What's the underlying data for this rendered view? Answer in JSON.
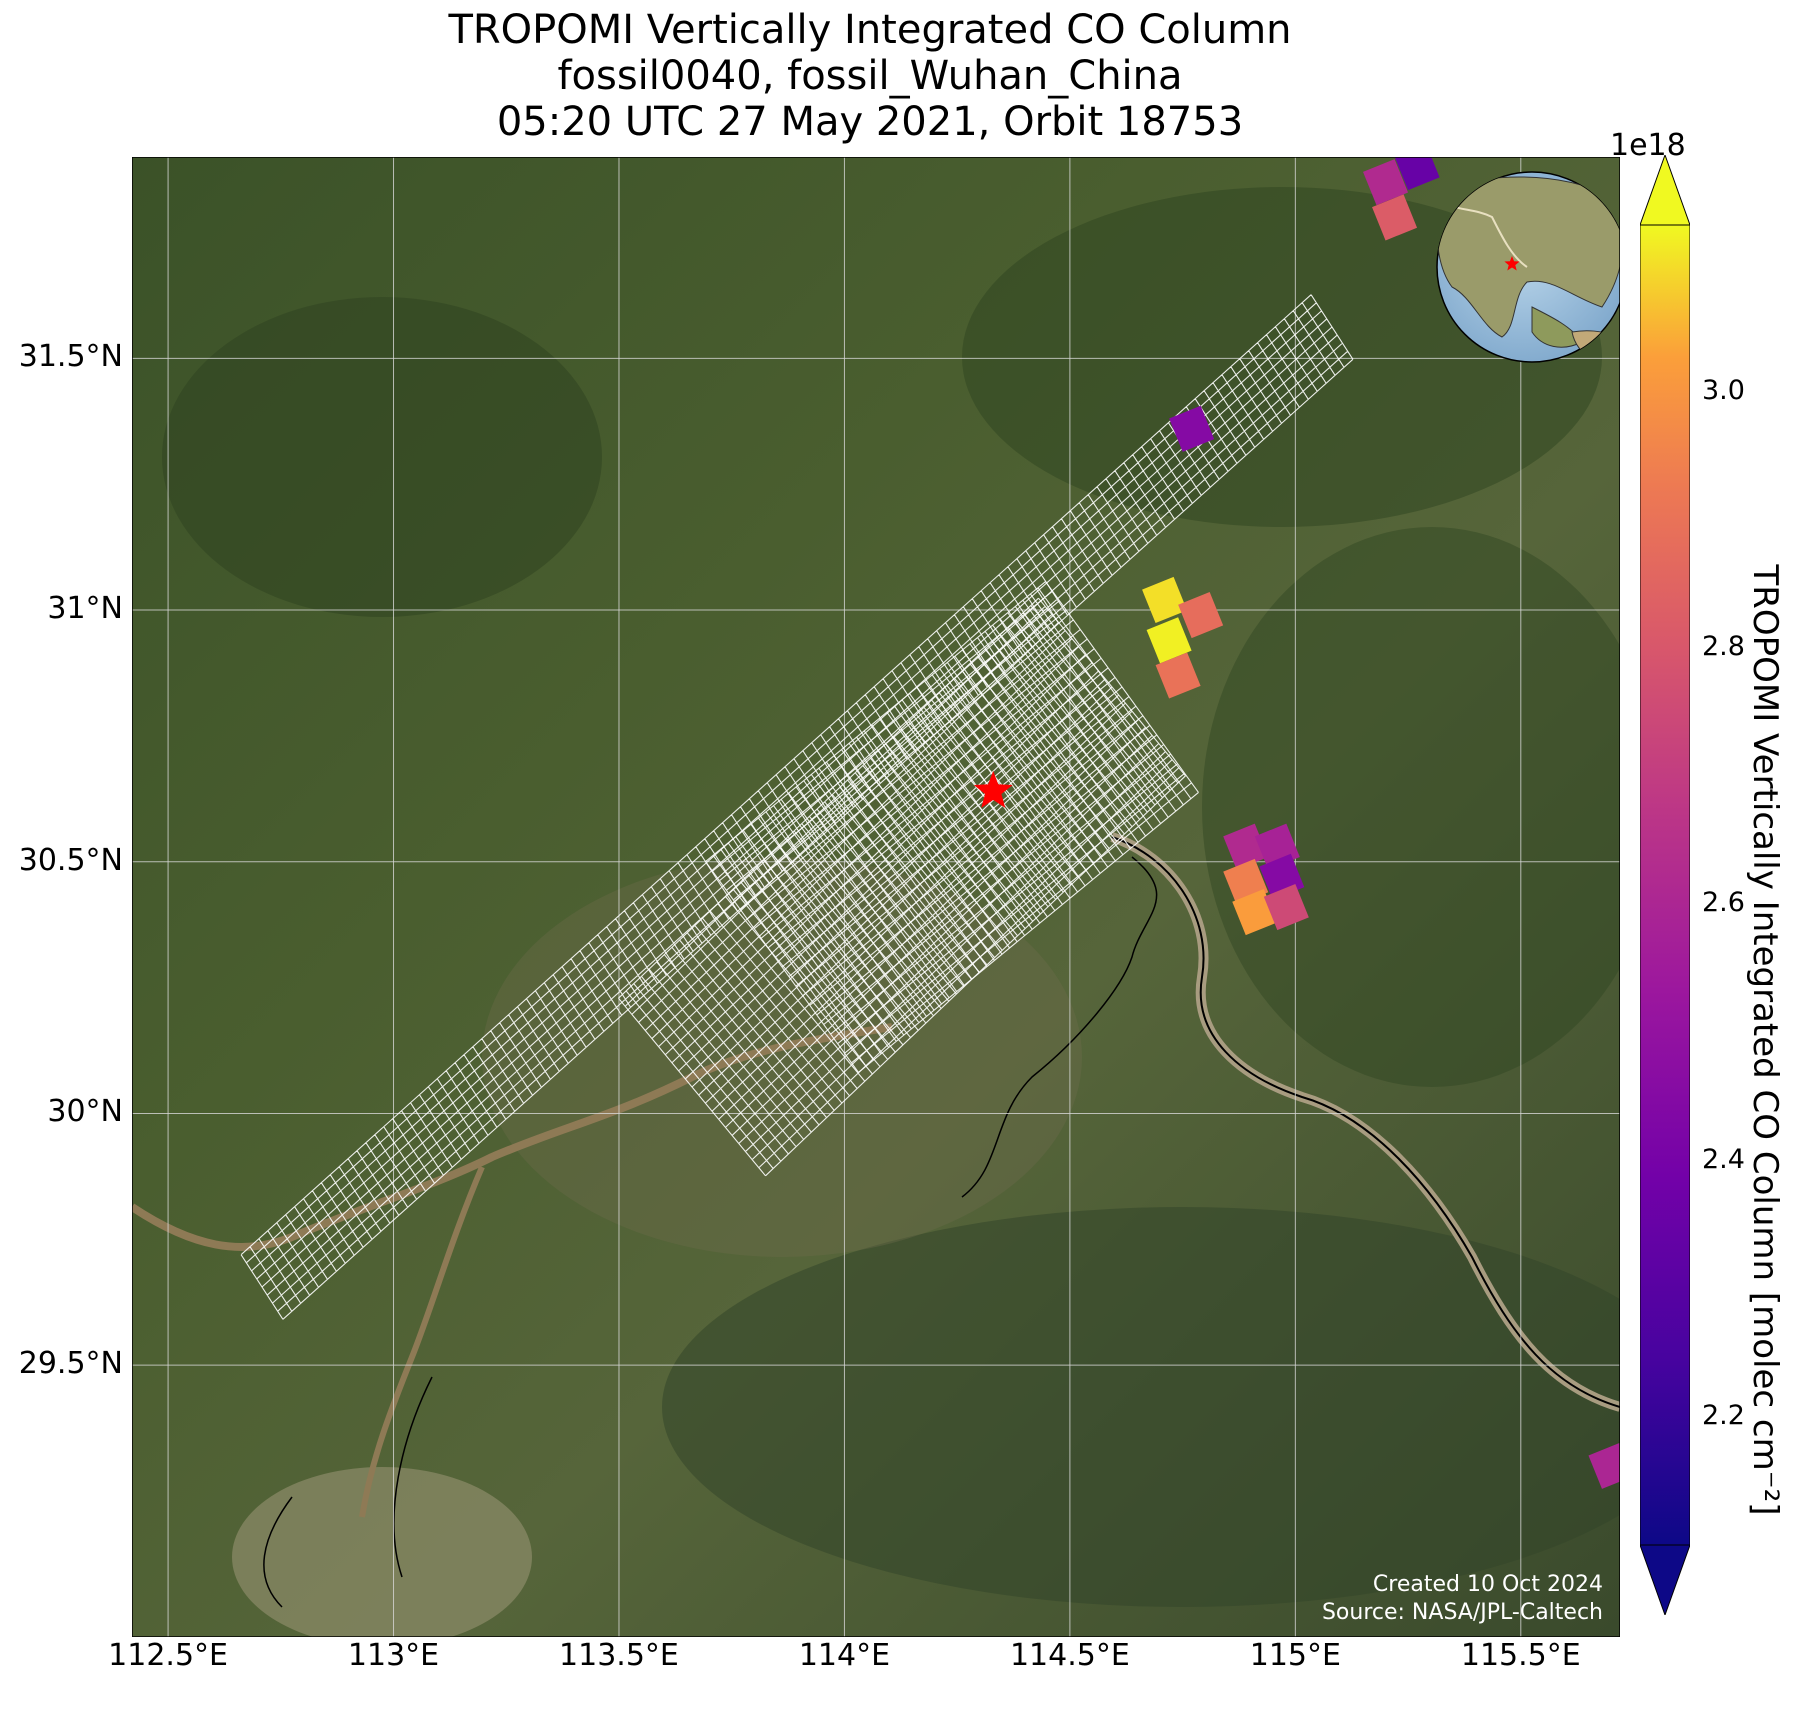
{
  "title": {
    "line1": "TROPOMI Vertically Integrated CO Column",
    "line2": "fossil0040, fossil_Wuhan_China",
    "line3": "05:20 UTC 27 May 2021, Orbit 18753"
  },
  "axes": {
    "lon_ticks": [
      "112.5°E",
      "113°E",
      "113.5°E",
      "114°E",
      "114.5°E",
      "115°E",
      "115.5°E"
    ],
    "lon_values": [
      112.5,
      113.0,
      113.5,
      114.0,
      114.5,
      115.0,
      115.5
    ],
    "lat_ticks": [
      "31.5°N",
      "31°N",
      "30.5°N",
      "30°N",
      "29.5°N"
    ],
    "lat_values": [
      31.5,
      31.0,
      30.5,
      30.0,
      29.5
    ],
    "lon_range": [
      112.42,
      115.72
    ],
    "lat_range": [
      28.96,
      31.9
    ],
    "grid": true
  },
  "colorbar": {
    "label": "TROPOMI Vertically Integrated CO Column [molec cm⁻²]",
    "multiplier": "1e18",
    "ticks": [
      "2.2",
      "2.4",
      "2.6",
      "2.8",
      "3.0"
    ],
    "tick_values": [
      2.2,
      2.4,
      2.6,
      2.8,
      3.0
    ],
    "range": [
      2.1,
      3.13
    ],
    "colormap": "plasma",
    "extend": "both"
  },
  "site": {
    "name": "fossil_Wuhan_China",
    "lon": 114.33,
    "lat": 30.64,
    "marker": "red-star"
  },
  "credits": {
    "created": "Created 10 Oct 2024",
    "source": "Source: NASA/JPL-Caltech"
  },
  "inset": {
    "type": "globe",
    "region": "Asia"
  },
  "chart_data": {
    "type": "heatmap",
    "title": "TROPOMI Vertically Integrated CO Column",
    "xlabel": "",
    "ylabel": "",
    "x_range": [
      112.42,
      115.72
    ],
    "y_range": [
      28.96,
      31.9
    ],
    "pixels": [
      {
        "lon": 115.2,
        "lat": 31.85,
        "value": 2.62
      },
      {
        "lon": 115.27,
        "lat": 31.88,
        "value": 2.35
      },
      {
        "lon": 115.22,
        "lat": 31.78,
        "value": 2.82
      },
      {
        "lon": 114.77,
        "lat": 31.36,
        "value": 2.45
      },
      {
        "lon": 114.71,
        "lat": 31.02,
        "value": 3.1
      },
      {
        "lon": 114.79,
        "lat": 30.99,
        "value": 2.88
      },
      {
        "lon": 114.72,
        "lat": 30.94,
        "value": 3.12
      },
      {
        "lon": 114.74,
        "lat": 30.87,
        "value": 2.9
      },
      {
        "lon": 114.89,
        "lat": 30.53,
        "value": 2.62
      },
      {
        "lon": 114.96,
        "lat": 30.53,
        "value": 2.58
      },
      {
        "lon": 114.89,
        "lat": 30.46,
        "value": 2.94
      },
      {
        "lon": 114.97,
        "lat": 30.47,
        "value": 2.45
      },
      {
        "lon": 114.91,
        "lat": 30.4,
        "value": 3.02
      },
      {
        "lon": 114.98,
        "lat": 30.41,
        "value": 2.75
      },
      {
        "lon": 115.7,
        "lat": 29.3,
        "value": 2.6
      }
    ]
  }
}
